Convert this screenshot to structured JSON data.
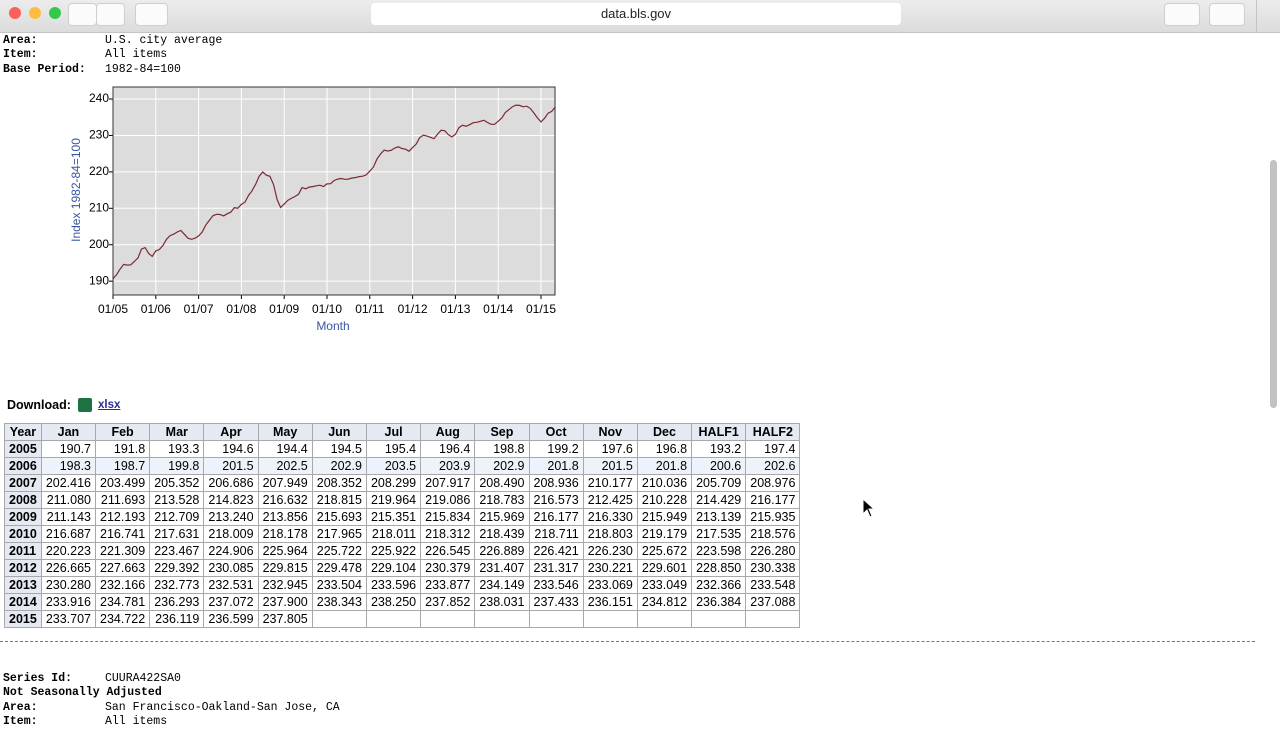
{
  "browser": {
    "url": "data.bls.gov"
  },
  "header": {
    "fields": [
      {
        "label": "Area:",
        "value": "U.S. city average"
      },
      {
        "label": "Item:",
        "value": "All items"
      },
      {
        "label": "Base Period:",
        "value": "1982-84=100"
      }
    ]
  },
  "chart_data": {
    "type": "line",
    "y_label": "Index 1982-84=100",
    "x_label": "Month",
    "source": "table",
    "color": "#7a2a35",
    "grid": true,
    "ylim": [
      186.2,
      243.3
    ],
    "yticks": [
      190,
      200,
      210,
      220,
      230,
      240
    ],
    "xticks": [
      "01/05",
      "01/06",
      "01/07",
      "01/08",
      "01/09",
      "01/10",
      "01/11",
      "01/12",
      "01/13",
      "01/14",
      "01/15"
    ]
  },
  "download": {
    "label": "Download:",
    "link": "xlsx"
  },
  "table": {
    "columns": [
      "Year",
      "Jan",
      "Feb",
      "Mar",
      "Apr",
      "May",
      "Jun",
      "Jul",
      "Aug",
      "Sep",
      "Oct",
      "Nov",
      "Dec",
      "HALF1",
      "HALF2"
    ],
    "rows": [
      [
        "2005",
        "190.7",
        "191.8",
        "193.3",
        "194.6",
        "194.4",
        "194.5",
        "195.4",
        "196.4",
        "198.8",
        "199.2",
        "197.6",
        "196.8",
        "193.2",
        "197.4"
      ],
      [
        "2006",
        "198.3",
        "198.7",
        "199.8",
        "201.5",
        "202.5",
        "202.9",
        "203.5",
        "203.9",
        "202.9",
        "201.8",
        "201.5",
        "201.8",
        "200.6",
        "202.6"
      ],
      [
        "2007",
        "202.416",
        "203.499",
        "205.352",
        "206.686",
        "207.949",
        "208.352",
        "208.299",
        "207.917",
        "208.490",
        "208.936",
        "210.177",
        "210.036",
        "205.709",
        "208.976"
      ],
      [
        "2008",
        "211.080",
        "211.693",
        "213.528",
        "214.823",
        "216.632",
        "218.815",
        "219.964",
        "219.086",
        "218.783",
        "216.573",
        "212.425",
        "210.228",
        "214.429",
        "216.177"
      ],
      [
        "2009",
        "211.143",
        "212.193",
        "212.709",
        "213.240",
        "213.856",
        "215.693",
        "215.351",
        "215.834",
        "215.969",
        "216.177",
        "216.330",
        "215.949",
        "213.139",
        "215.935"
      ],
      [
        "2010",
        "216.687",
        "216.741",
        "217.631",
        "218.009",
        "218.178",
        "217.965",
        "218.011",
        "218.312",
        "218.439",
        "218.711",
        "218.803",
        "219.179",
        "217.535",
        "218.576"
      ],
      [
        "2011",
        "220.223",
        "221.309",
        "223.467",
        "224.906",
        "225.964",
        "225.722",
        "225.922",
        "226.545",
        "226.889",
        "226.421",
        "226.230",
        "225.672",
        "223.598",
        "226.280"
      ],
      [
        "2012",
        "226.665",
        "227.663",
        "229.392",
        "230.085",
        "229.815",
        "229.478",
        "229.104",
        "230.379",
        "231.407",
        "231.317",
        "230.221",
        "229.601",
        "228.850",
        "230.338"
      ],
      [
        "2013",
        "230.280",
        "232.166",
        "232.773",
        "232.531",
        "232.945",
        "233.504",
        "233.596",
        "233.877",
        "234.149",
        "233.546",
        "233.069",
        "233.049",
        "232.366",
        "233.548"
      ],
      [
        "2014",
        "233.916",
        "234.781",
        "236.293",
        "237.072",
        "237.900",
        "238.343",
        "238.250",
        "237.852",
        "238.031",
        "237.433",
        "236.151",
        "234.812",
        "236.384",
        "237.088"
      ],
      [
        "2015",
        "233.707",
        "234.722",
        "236.119",
        "236.599",
        "237.805",
        null,
        null,
        null,
        null,
        null,
        null,
        null,
        null,
        null
      ]
    ]
  },
  "next_series": {
    "lines": [
      {
        "label": "Series Id:",
        "value": "CUURA422SA0"
      },
      {
        "label": "Not Seasonally Adjusted"
      },
      {
        "label": "Area:",
        "value": "San Francisco-Oakland-San Jose, CA"
      },
      {
        "label": "Item:",
        "value": "All items"
      }
    ]
  }
}
